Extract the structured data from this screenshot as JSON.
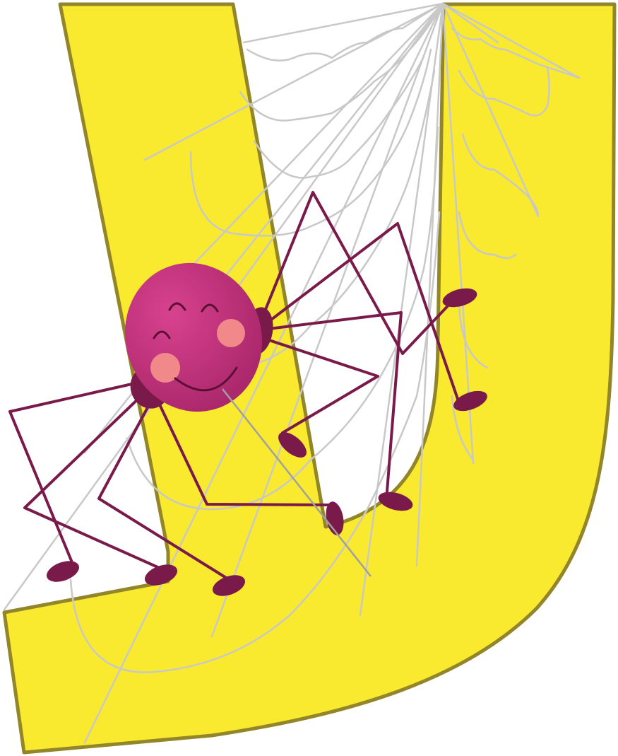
{
  "illustration": {
    "subject": "letter-y",
    "colors": {
      "letter_fill": "#f9ea2f",
      "letter_outline": "#93862a",
      "web": "#c8c8c8",
      "spider_body": "#c2307a",
      "spider_body_highlight": "#d8428e",
      "spider_dark": "#7a1a4a",
      "spider_legs": "#7a1a4a",
      "cheeks": "#f1898a",
      "face_lines": "#5a1034"
    },
    "icons": [
      "spider-icon",
      "spider-web-icon"
    ]
  }
}
